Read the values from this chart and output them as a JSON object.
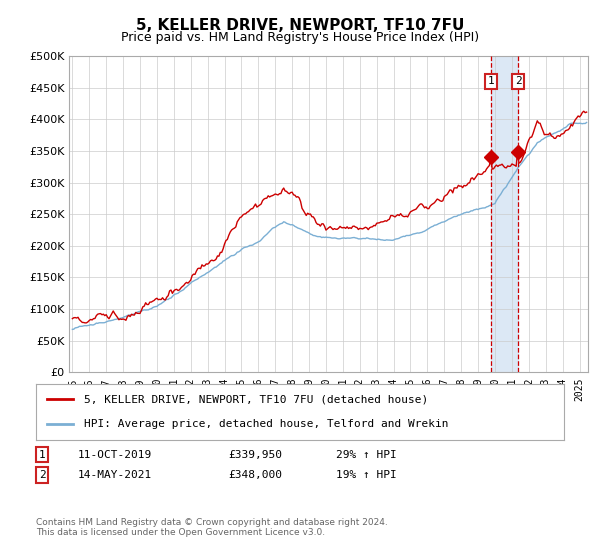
{
  "title": "5, KELLER DRIVE, NEWPORT, TF10 7FU",
  "subtitle": "Price paid vs. HM Land Registry's House Price Index (HPI)",
  "legend_label_red": "5, KELLER DRIVE, NEWPORT, TF10 7FU (detached house)",
  "legend_label_blue": "HPI: Average price, detached house, Telford and Wrekin",
  "annotation1_label": "1",
  "annotation1_date": "11-OCT-2019",
  "annotation1_price": "£339,950",
  "annotation1_hpi": "29% ↑ HPI",
  "annotation2_label": "2",
  "annotation2_date": "14-MAY-2021",
  "annotation2_price": "£348,000",
  "annotation2_hpi": "19% ↑ HPI",
  "vline1_year": 2019.78,
  "vline2_year": 2021.37,
  "marker1_val": 339950,
  "marker2_val": 348000,
  "footer": "Contains HM Land Registry data © Crown copyright and database right 2024.\nThis data is licensed under the Open Government Licence v3.0.",
  "red_color": "#cc0000",
  "blue_color": "#7bafd4",
  "span_color": "#dce8f5",
  "grid_color": "#cccccc",
  "plot_bg": "#ffffff",
  "fig_bg": "#ffffff",
  "ylim": [
    0,
    500000
  ],
  "xlim_start": 1994.8,
  "xlim_end": 2025.5,
  "yticks": [
    0,
    50000,
    100000,
    150000,
    200000,
    250000,
    300000,
    350000,
    400000,
    450000,
    500000
  ]
}
